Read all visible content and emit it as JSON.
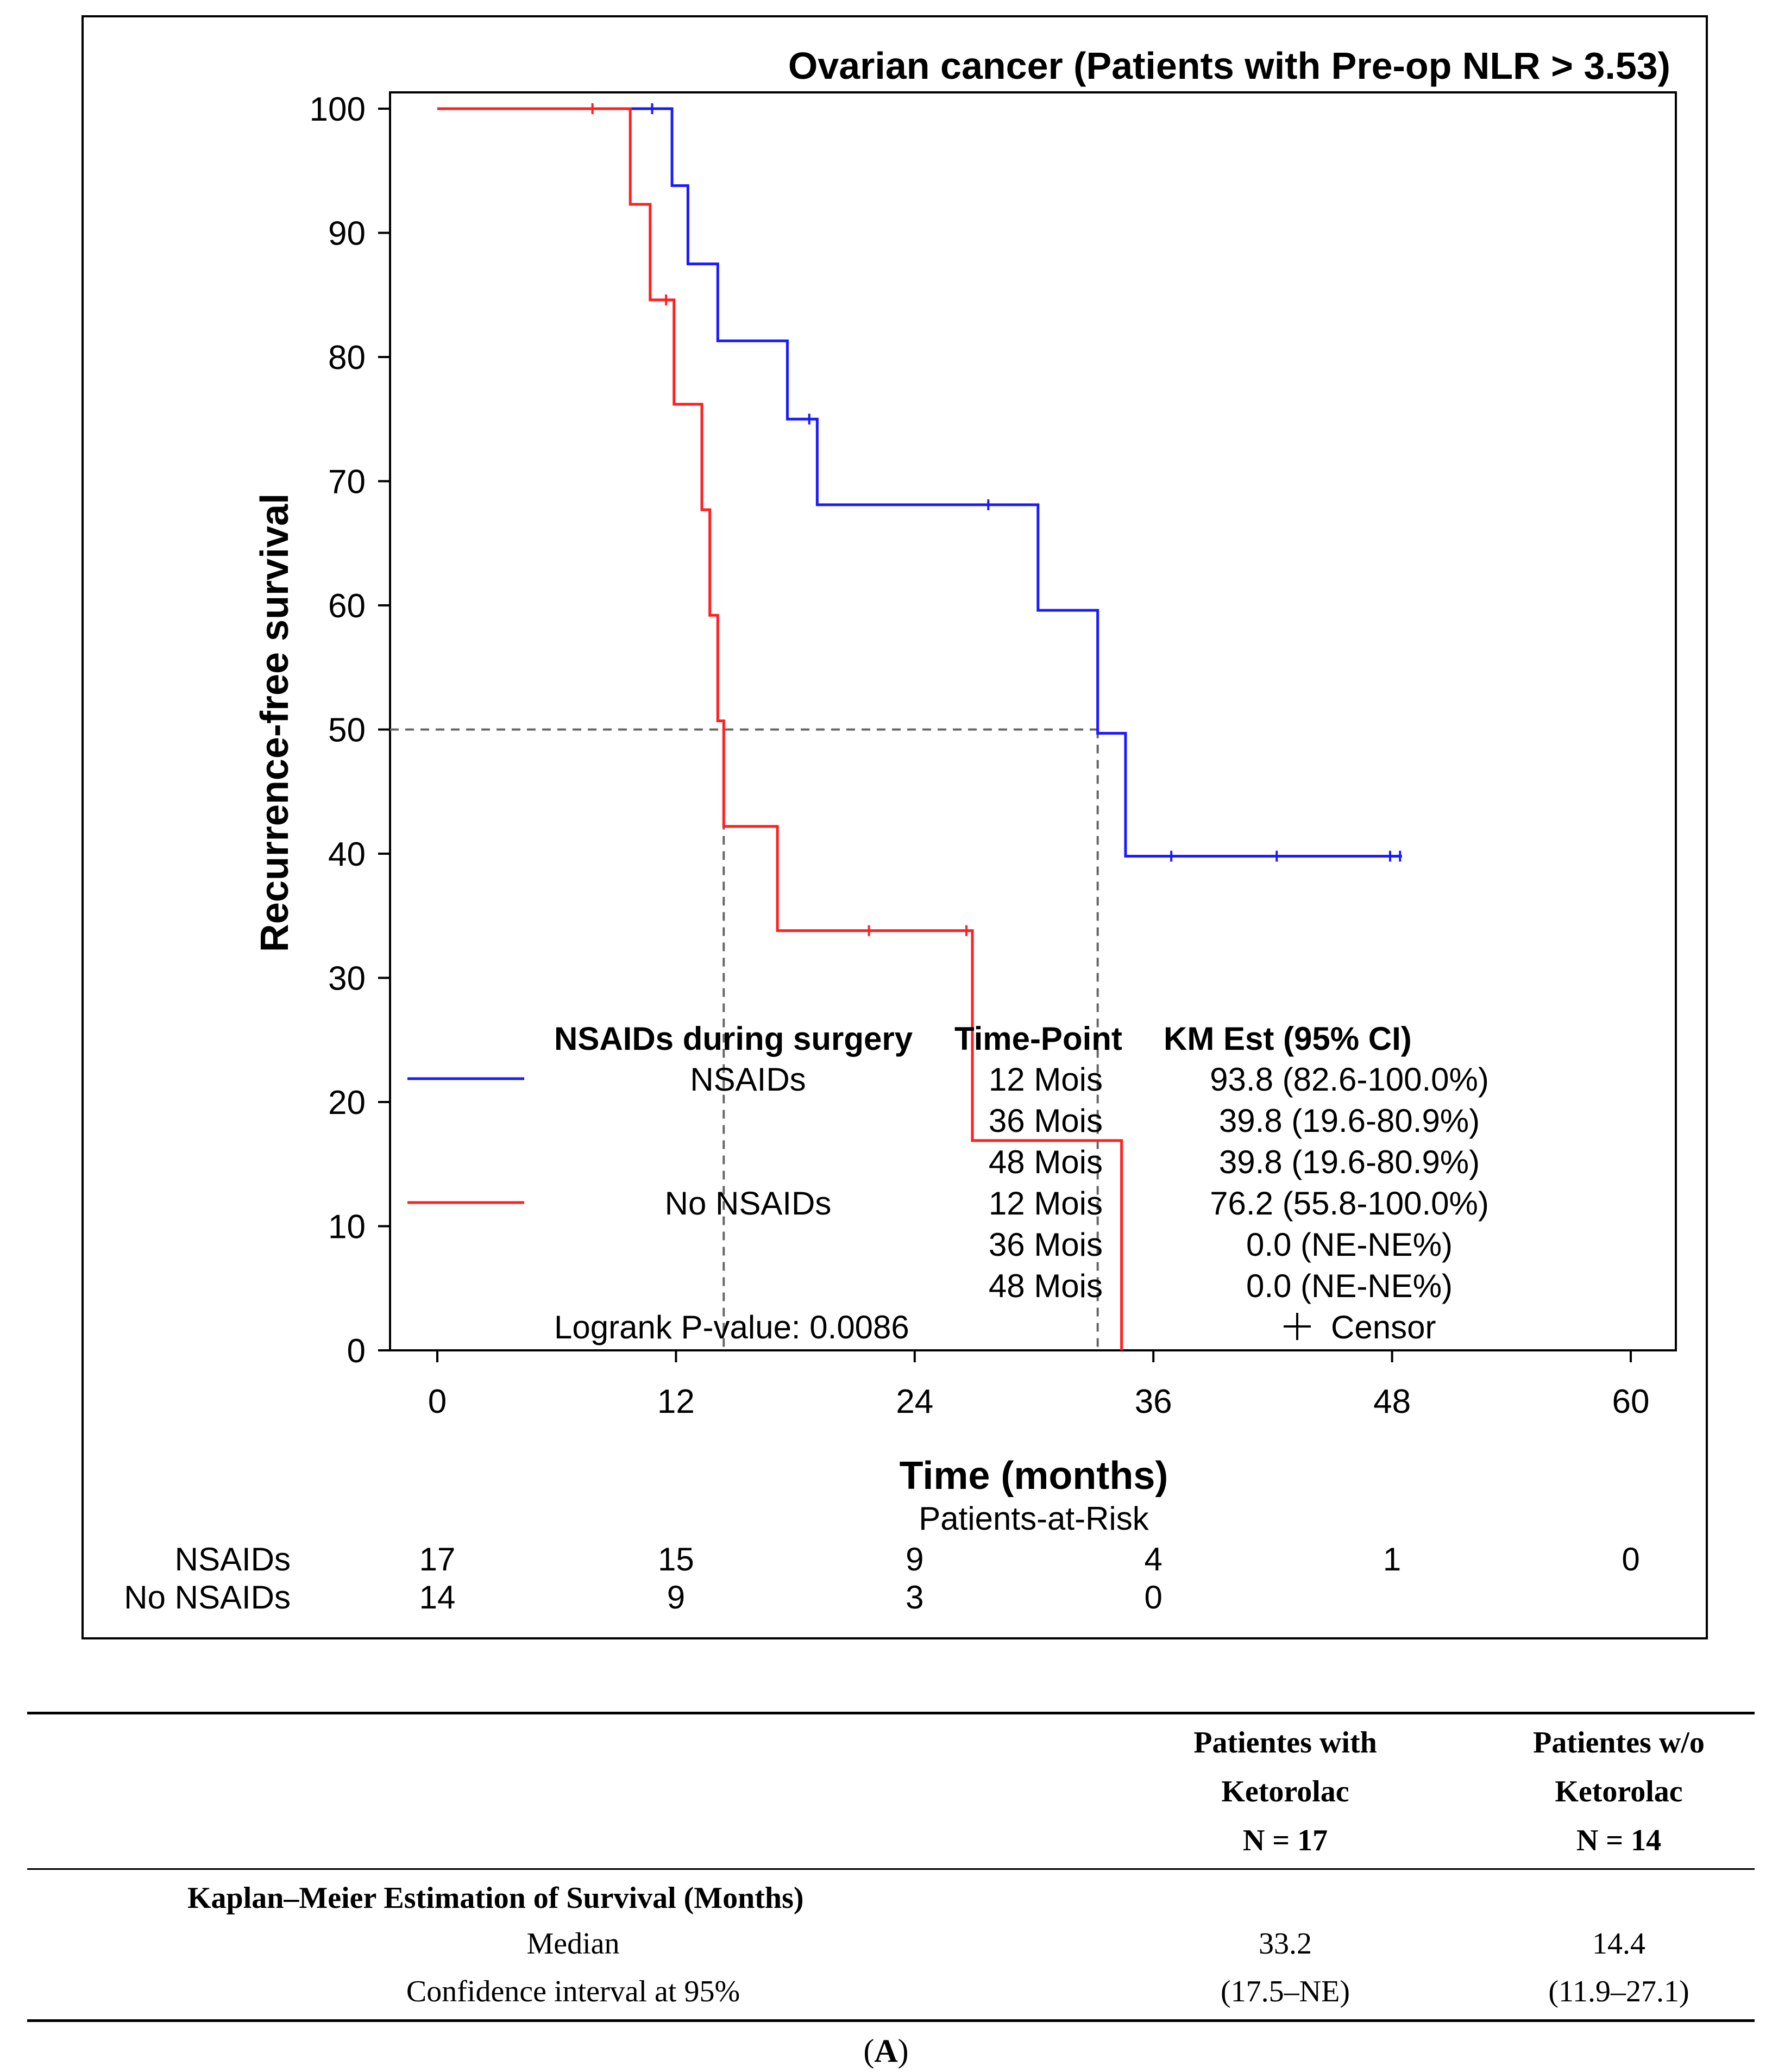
{
  "chart_data": {
    "type": "line",
    "subtype": "kaplan-meier",
    "title": "Ovarian cancer (Patients with Pre-op NLR > 3.53)",
    "xlabel": "Time (months)",
    "ylabel": "Recurrence-free survival",
    "xlim": [
      0,
      60
    ],
    "ylim": [
      0,
      100
    ],
    "x_ticks": [
      0,
      12,
      24,
      36,
      48,
      60
    ],
    "y_ticks": [
      0,
      10,
      20,
      30,
      40,
      50,
      60,
      70,
      80,
      90,
      100
    ],
    "median_reference": {
      "y": 50,
      "x_values": [
        14.4,
        33.2
      ]
    },
    "series": [
      {
        "name": "NSAIDs",
        "color": "#1a1aff",
        "steps": [
          [
            0,
            100
          ],
          [
            11.8,
            93.8
          ],
          [
            12.6,
            87.5
          ],
          [
            14.1,
            81.3
          ],
          [
            17.6,
            75.0
          ],
          [
            19.1,
            68.1
          ],
          [
            30.2,
            59.6
          ],
          [
            33.2,
            49.7
          ],
          [
            34.6,
            39.8
          ]
        ],
        "end_x": 48.5,
        "censors": [
          [
            10.8,
            100
          ],
          [
            18.7,
            75.0
          ],
          [
            27.7,
            68.1
          ],
          [
            36.9,
            39.8
          ],
          [
            42.2,
            39.8
          ],
          [
            47.9,
            39.8
          ],
          [
            48.4,
            39.8
          ]
        ]
      },
      {
        "name": "No NSAIDs",
        "color": "#ff2020",
        "steps": [
          [
            0,
            100
          ],
          [
            9.7,
            92.3
          ],
          [
            10.7,
            84.6
          ],
          [
            11.9,
            76.2
          ],
          [
            13.3,
            67.7
          ],
          [
            13.7,
            59.2
          ],
          [
            14.1,
            50.7
          ],
          [
            14.4,
            42.2
          ],
          [
            17.1,
            33.8
          ],
          [
            26.9,
            16.9
          ],
          [
            34.4,
            0
          ]
        ],
        "end_x": 34.4,
        "censors": [
          [
            7.8,
            100
          ],
          [
            11.5,
            84.6
          ],
          [
            21.7,
            33.8
          ],
          [
            26.6,
            33.8
          ]
        ]
      }
    ],
    "legend": {
      "headers": [
        "NSAIDs during surgery",
        "Time-Point",
        "KM Est (95% CI)"
      ],
      "rows": [
        {
          "group": "NSAIDs",
          "time": "12 Mois",
          "est": "93.8 (82.6-100.0%)"
        },
        {
          "group": "",
          "time": "36 Mois",
          "est": "39.8 (19.6-80.9%)"
        },
        {
          "group": "",
          "time": "48 Mois",
          "est": "39.8 (19.6-80.9%)"
        },
        {
          "group": "No NSAIDs",
          "time": "12 Mois",
          "est": "76.2 (55.8-100.0%)"
        },
        {
          "group": "",
          "time": "36 Mois",
          "est": "0.0 (NE-NE%)"
        },
        {
          "group": "",
          "time": "48 Mois",
          "est": "0.0 (NE-NE%)"
        }
      ],
      "pvalue": "Logrank P-value: 0.0086",
      "censor_label": "Censor"
    },
    "risk_table": {
      "title": "Patients-at-Risk",
      "rows": [
        {
          "label": "NSAIDs",
          "values": [
            "17",
            "15",
            "9",
            "4",
            "1",
            "0"
          ]
        },
        {
          "label": "No NSAIDs",
          "values": [
            "14",
            "9",
            "3",
            "0"
          ]
        }
      ]
    }
  },
  "summary_table": {
    "columns": [
      {
        "lines": [
          "Patientes with",
          "Ketorolac",
          "N = 17"
        ]
      },
      {
        "lines": [
          "Patientes w/o",
          "Ketorolac",
          "N = 14"
        ]
      }
    ],
    "section_title": "Kaplan–Meier Estimation of Survival (Months)",
    "rows": [
      {
        "label": "Median",
        "values": [
          "33.2",
          "14.4"
        ]
      },
      {
        "label": "Confidence interval at 95%",
        "values": [
          "(17.5–NE)",
          "(11.9–27.1)"
        ]
      }
    ]
  },
  "caption": {
    "prefix": "(",
    "letter": "A",
    "suffix": ")"
  }
}
